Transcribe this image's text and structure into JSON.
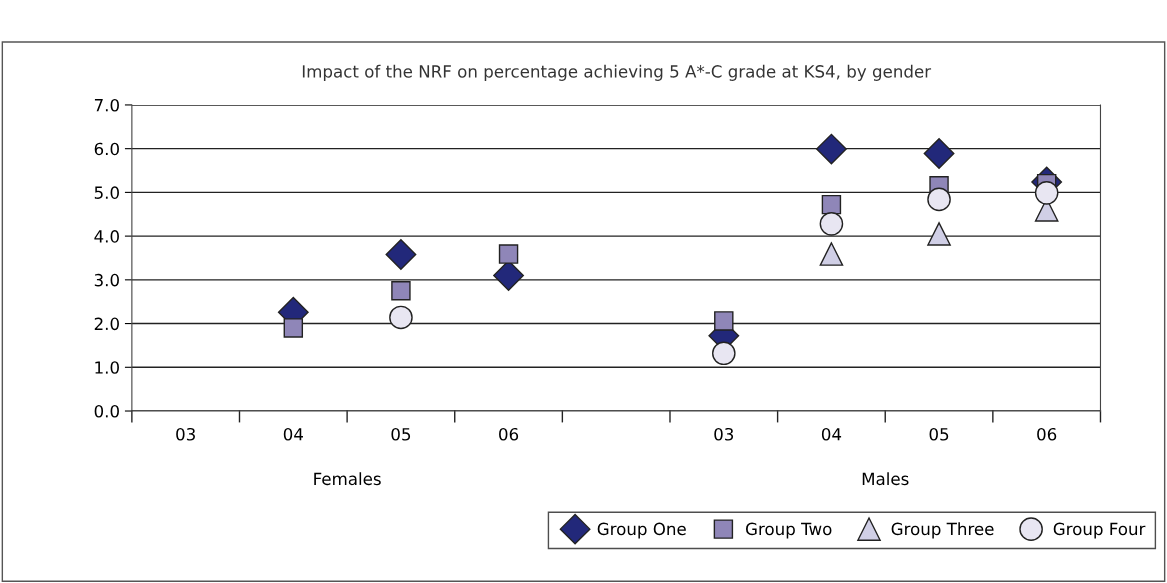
{
  "chart_data": {
    "type": "scatter",
    "title": "Impact of the NRF on percentage achieving 5 A*-C grade at KS4, by gender",
    "categories": [
      "03",
      "04",
      "05",
      "06",
      null,
      "03",
      "04",
      "05",
      "06"
    ],
    "annotations": [
      "Females",
      "Males"
    ],
    "series": [
      {
        "name": "Group One",
        "color": "#22287a",
        "marker": "diamond",
        "values": [
          null,
          2.26,
          3.58,
          3.1,
          null,
          1.72,
          5.99,
          5.89,
          5.24
        ]
      },
      {
        "name": "Group Two",
        "color": "#8f86b8",
        "marker": "square",
        "values": [
          null,
          1.9,
          2.75,
          3.59,
          null,
          2.06,
          4.72,
          5.15,
          5.2
        ]
      },
      {
        "name": "Group Three",
        "color": "#d0cfe6",
        "marker": "triangle",
        "values": [
          null,
          null,
          null,
          null,
          null,
          null,
          3.59,
          4.05,
          4.6
        ]
      },
      {
        "name": "Group Four",
        "color": "#e8e6f2",
        "marker": "circle",
        "values": [
          null,
          null,
          2.14,
          null,
          null,
          1.32,
          4.28,
          4.84,
          4.99
        ]
      }
    ],
    "ylim": [
      0,
      7
    ],
    "yticks": [
      {
        "value": 0,
        "label": "0.0"
      },
      {
        "value": 1,
        "label": "1.0"
      },
      {
        "value": 2,
        "label": "2.0"
      },
      {
        "value": 3,
        "label": "3.0"
      },
      {
        "value": 4,
        "label": "4.0"
      },
      {
        "value": 5,
        "label": "5.0"
      },
      {
        "value": 6,
        "label": "6.0"
      },
      {
        "value": 7,
        "label": "7.0"
      }
    ],
    "grid": "y",
    "legend": "bottom"
  }
}
